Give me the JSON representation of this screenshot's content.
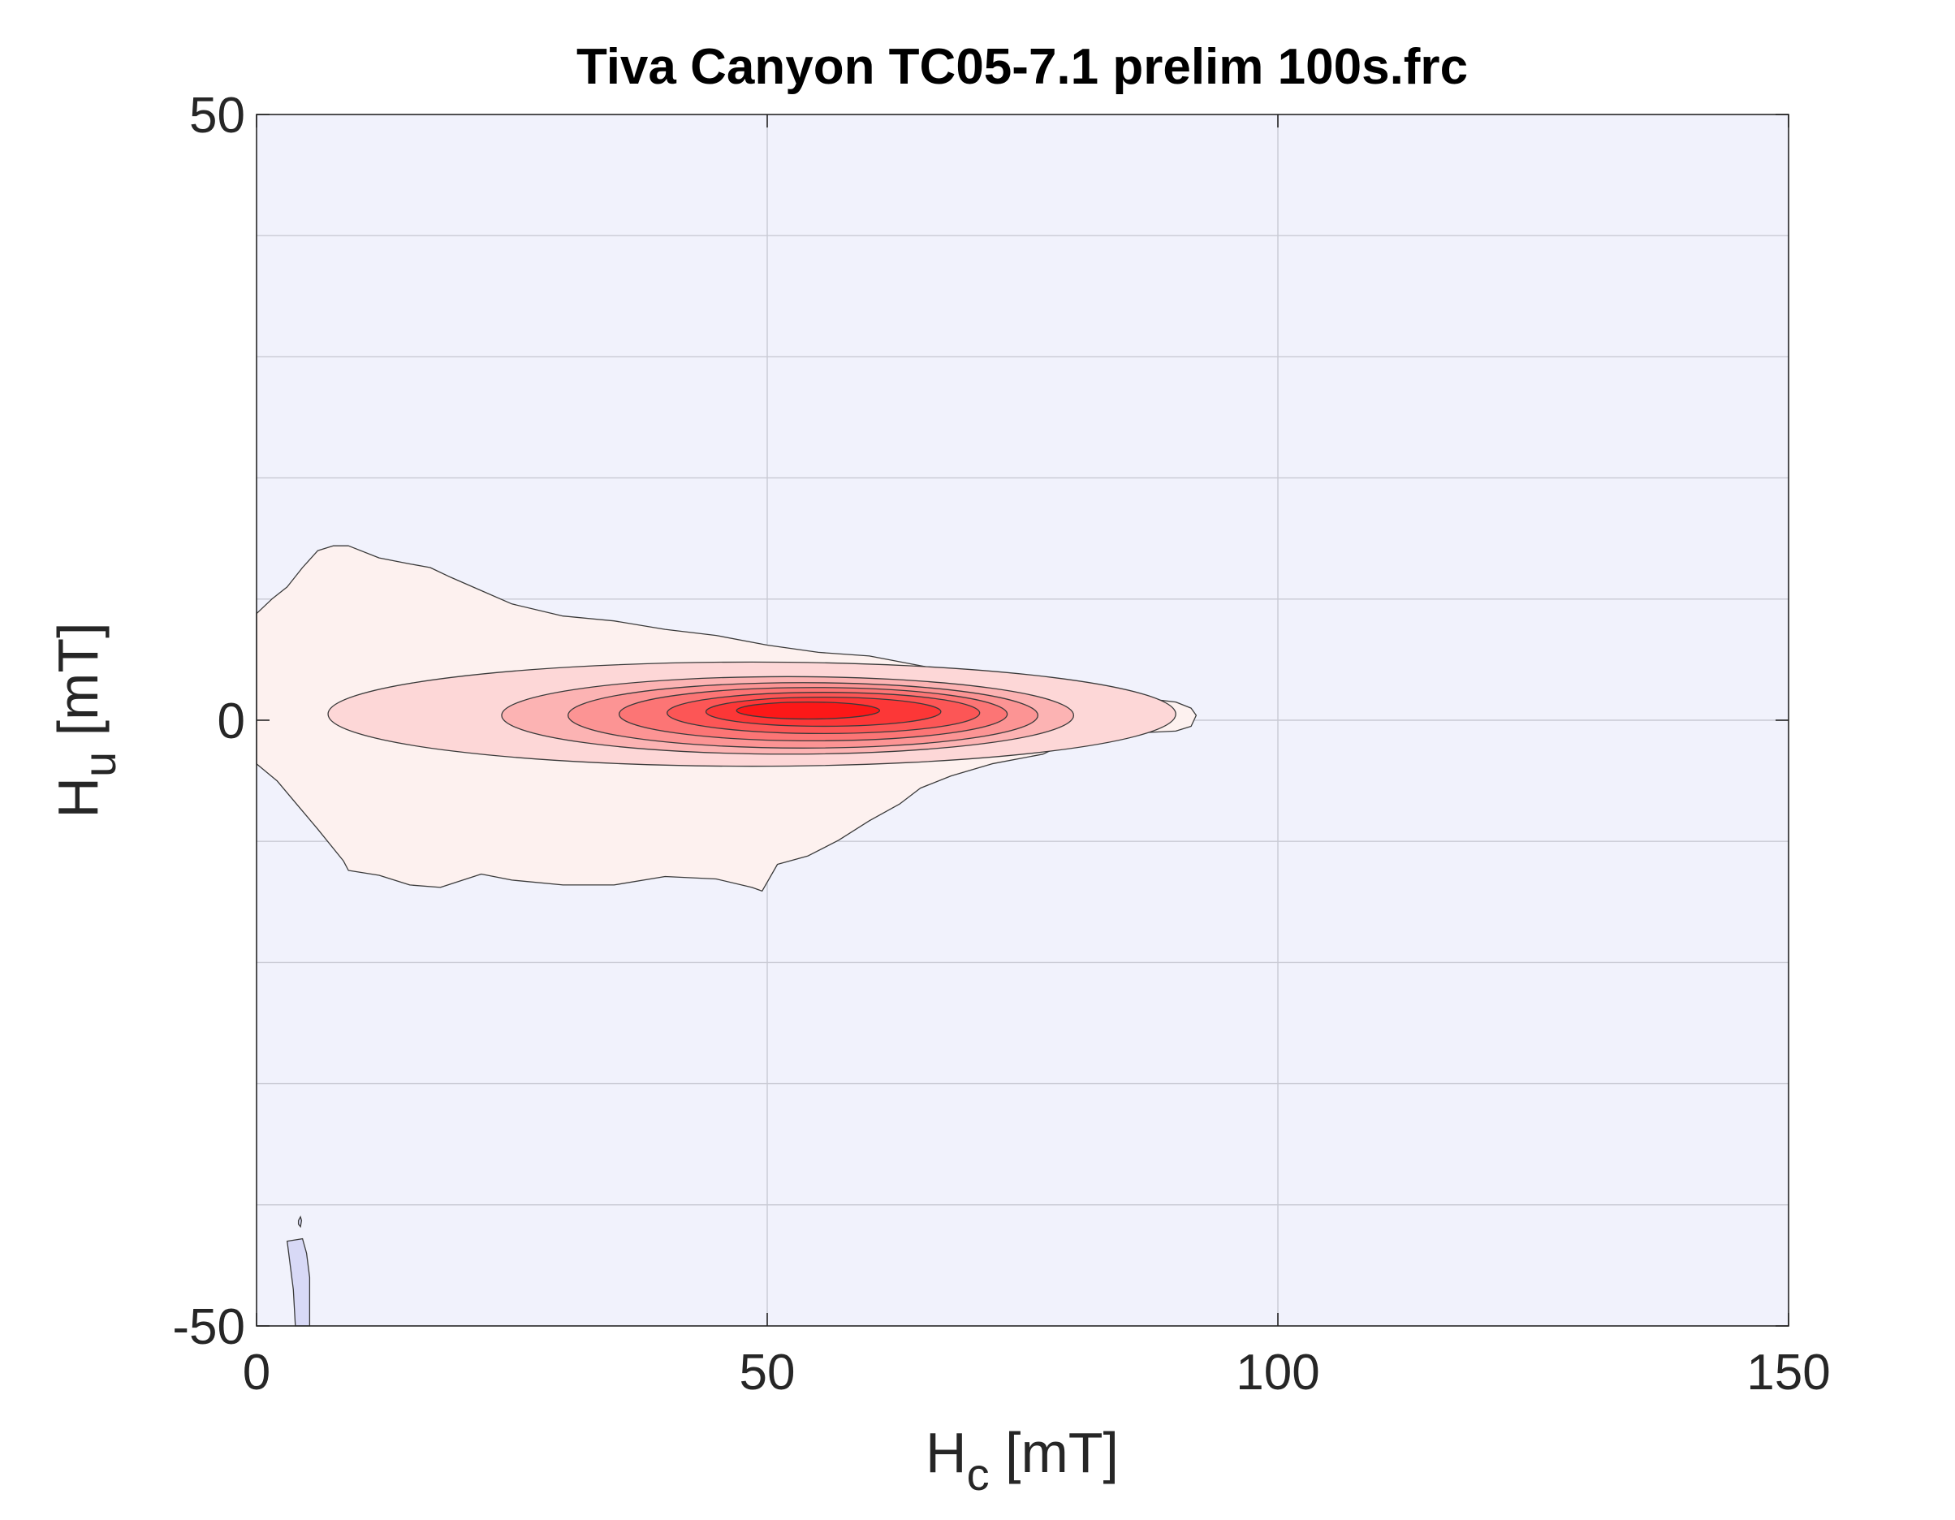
{
  "chart_data": {
    "type": "heatmap",
    "subtype": "filled-contour",
    "title": "Tiva Canyon TC05-7.1 prelim 100s.frc",
    "xlabel": {
      "main": "H",
      "sub": "c",
      "unit": " [mT]"
    },
    "ylabel": {
      "main": "H",
      "sub": "u",
      "unit": " [mT]"
    },
    "xlim": [
      0,
      150
    ],
    "ylim": [
      -50,
      50
    ],
    "x_ticks": [
      0,
      50,
      100,
      150
    ],
    "y_ticks": [
      -50,
      0,
      50
    ],
    "x_gridlines": [
      50,
      100
    ],
    "y_gridlines": [
      -40,
      -30,
      -20,
      -10,
      0,
      10,
      20,
      30,
      40
    ],
    "grid": true,
    "colors": {
      "background": "#f1f2fc",
      "grid": "#c9cad4",
      "contour_line": "#3a3a3a",
      "levels": [
        "#fdf1ef",
        "#fdd7d7",
        "#fcb3b3",
        "#fc9494",
        "#fc7575",
        "#fc5656",
        "#fc3737",
        "#fc1818"
      ],
      "negative": "#d8d9f6"
    },
    "contours": [
      {
        "level": 1,
        "points": [
          [
            0,
            8.8
          ],
          [
            1.5,
            10
          ],
          [
            3,
            11
          ],
          [
            4.5,
            12.6
          ],
          [
            6,
            14
          ],
          [
            7.5,
            14.4
          ],
          [
            9,
            14.4
          ],
          [
            12,
            13.4
          ],
          [
            15,
            12.9
          ],
          [
            17,
            12.6
          ],
          [
            19,
            11.8
          ],
          [
            22,
            10.7
          ],
          [
            25,
            9.6
          ],
          [
            30,
            8.6
          ],
          [
            35,
            8.2
          ],
          [
            40,
            7.5
          ],
          [
            45,
            7
          ],
          [
            50,
            6.2
          ],
          [
            55,
            5.6
          ],
          [
            60,
            5.3
          ],
          [
            65,
            4.5
          ],
          [
            70,
            3.7
          ],
          [
            75,
            3
          ],
          [
            80,
            2.5
          ],
          [
            85,
            2
          ],
          [
            90,
            1.5
          ],
          [
            91.5,
            1
          ],
          [
            92,
            0.4
          ],
          [
            91.5,
            -0.5
          ],
          [
            90,
            -0.9
          ],
          [
            85,
            -1.1
          ],
          [
            80,
            -1.6
          ],
          [
            77,
            -2.8
          ],
          [
            72,
            -3.6
          ],
          [
            68,
            -4.6
          ],
          [
            65,
            -5.6
          ],
          [
            63,
            -6.9
          ],
          [
            60,
            -8.3
          ],
          [
            57,
            -9.9
          ],
          [
            54,
            -11.2
          ],
          [
            51,
            -11.9
          ],
          [
            49.5,
            -14.1
          ],
          [
            48.5,
            -13.8
          ],
          [
            45,
            -13.1
          ],
          [
            40,
            -12.9
          ],
          [
            35,
            -13.6
          ],
          [
            30,
            -13.6
          ],
          [
            25,
            -13.2
          ],
          [
            22,
            -12.7
          ],
          [
            18,
            -13.8
          ],
          [
            15,
            -13.6
          ],
          [
            12,
            -12.8
          ],
          [
            9,
            -12.4
          ],
          [
            8.5,
            -11.6
          ],
          [
            6,
            -9
          ],
          [
            4,
            -7
          ],
          [
            2,
            -5
          ],
          [
            0,
            -3.6
          ]
        ]
      },
      {
        "level": 2,
        "center": [
          48.5,
          0.5
        ],
        "rx": 41.5,
        "ry": 4.3
      },
      {
        "level": 3,
        "center": [
          52,
          0.4
        ],
        "rx": 28,
        "ry": 3.2
      },
      {
        "level": 4,
        "center": [
          53.5,
          0.4
        ],
        "rx": 23,
        "ry": 2.7
      },
      {
        "level": 5,
        "center": [
          54.5,
          0.5
        ],
        "rx": 19,
        "ry": 2.2
      },
      {
        "level": 6,
        "center": [
          55.5,
          0.6
        ],
        "rx": 15.3,
        "ry": 1.7
      },
      {
        "level": 7,
        "center": [
          55.5,
          0.7
        ],
        "rx": 11.5,
        "ry": 1.2
      },
      {
        "level": 8,
        "center": [
          54,
          0.8
        ],
        "rx": 7,
        "ry": 0.7
      }
    ],
    "negative_contours": [
      {
        "points": [
          [
            3,
            -43
          ],
          [
            4.5,
            -42.8
          ],
          [
            4.9,
            -44
          ],
          [
            5.2,
            -46
          ],
          [
            5.2,
            -50
          ],
          [
            3.8,
            -50
          ],
          [
            3.6,
            -47
          ],
          [
            3.3,
            -45
          ]
        ]
      },
      {
        "points": [
          [
            4.1,
            -41.3
          ],
          [
            4.3,
            -41
          ],
          [
            4.4,
            -41.3
          ],
          [
            4.3,
            -41.8
          ],
          [
            4.1,
            -41.6
          ]
        ]
      }
    ]
  }
}
